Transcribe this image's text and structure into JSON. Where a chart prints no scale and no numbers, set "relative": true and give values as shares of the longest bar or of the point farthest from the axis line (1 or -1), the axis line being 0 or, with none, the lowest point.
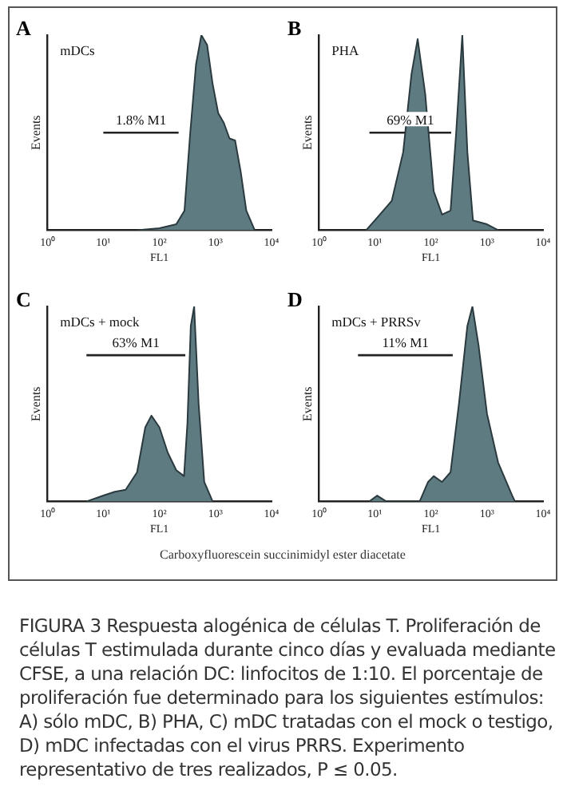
{
  "chart_data": [
    {
      "type": "area",
      "title": "A",
      "subtitle": "mDCs",
      "xlabel": "FL1",
      "ylabel": "Events",
      "relative": true,
      "log": "x",
      "marker": "none",
      "tick_labels": "x",
      "xlim": [
        1,
        10000
      ],
      "xticks": [
        {
          "value": 1,
          "label": "10⁰"
        },
        {
          "value": 10,
          "label": "10¹"
        },
        {
          "value": 100,
          "label": "10²"
        },
        {
          "value": 1000,
          "label": "10³"
        },
        {
          "value": 10000,
          "label": "10⁴"
        }
      ],
      "series": [
        {
          "color": "#5f7b82",
          "x": [
            40,
            100,
            200,
            280,
            355,
            450,
            560,
            710,
            890,
            1120,
            1410,
            1780,
            2240,
            2820,
            3550,
            5010
          ],
          "values": [
            0,
            0.01,
            0.03,
            0.1,
            0.5,
            0.85,
            1,
            0.95,
            0.75,
            0.6,
            0.55,
            0.47,
            0.46,
            0.3,
            0.1,
            0
          ]
        },
        {
          "type": "line",
          "color": "#222222",
          "x": [
            10,
            220
          ],
          "values": [
            0.5,
            0.5
          ]
        }
      ],
      "annotations": [
        {
          "text": "1.8% M1",
          "x": 47,
          "y": 0.5
        }
      ]
    },
    {
      "type": "area",
      "title": "B",
      "subtitle": "PHA",
      "xlabel": "FL1",
      "ylabel": "Events",
      "relative": true,
      "log": "x",
      "marker": "none",
      "tick_labels": "x",
      "xlim": [
        1,
        10000
      ],
      "xticks": [
        {
          "value": 1,
          "label": "10⁰"
        },
        {
          "value": 10,
          "label": "10¹"
        },
        {
          "value": 100,
          "label": "10²"
        },
        {
          "value": 1000,
          "label": "10³"
        },
        {
          "value": 10000,
          "label": "10⁴"
        }
      ],
      "series": [
        {
          "color": "#5f7b82",
          "x": [
            7,
            10,
            20,
            32,
            45,
            58,
            79,
            112,
            158,
            224,
            282,
            363,
            447,
            562,
            1000,
            1580
          ],
          "values": [
            0,
            0.05,
            0.15,
            0.4,
            0.8,
            0.98,
            0.7,
            0.2,
            0.08,
            0.1,
            0.5,
            1,
            0.4,
            0.05,
            0.03,
            0
          ]
        },
        {
          "type": "line",
          "color": "#222222",
          "x": [
            8,
            230
          ],
          "values": [
            0.5,
            0.5
          ]
        }
      ],
      "annotations": [
        {
          "text": "69% M1",
          "x": 43,
          "y": 0.5
        }
      ]
    },
    {
      "type": "area",
      "title": "C",
      "subtitle": "mDCs + mock",
      "xlabel": "FL1",
      "ylabel": "Events",
      "relative": true,
      "log": "x",
      "marker": "none",
      "tick_labels": "x",
      "xlim": [
        1,
        10000
      ],
      "xticks": [
        {
          "value": 1,
          "label": "10⁰"
        },
        {
          "value": 10,
          "label": "10¹"
        },
        {
          "value": 100,
          "label": "10²"
        },
        {
          "value": 1000,
          "label": "10³"
        },
        {
          "value": 10000,
          "label": "10⁴"
        }
      ],
      "series": [
        {
          "color": "#5f7b82",
          "x": [
            5,
            10,
            16,
            25,
            40,
            56,
            72,
            100,
            141,
            200,
            275,
            316,
            363,
            417,
            501,
            631,
            891
          ],
          "values": [
            0,
            0.03,
            0.05,
            0.06,
            0.15,
            0.38,
            0.44,
            0.38,
            0.25,
            0.16,
            0.13,
            0.4,
            0.9,
            1,
            0.5,
            0.1,
            0
          ]
        },
        {
          "type": "line",
          "color": "#222222",
          "x": [
            5,
            290
          ],
          "values": [
            0.75,
            0.75
          ]
        }
      ],
      "annotations": [
        {
          "text": "63% M1",
          "x": 38,
          "y": 0.75
        }
      ]
    },
    {
      "type": "area",
      "title": "D",
      "subtitle": "mDCs + PRRSv",
      "xlabel": "FL1",
      "ylabel": "Events",
      "relative": true,
      "log": "x",
      "marker": "none",
      "tick_labels": "x",
      "xlim": [
        1,
        10000
      ],
      "xticks": [
        {
          "value": 1,
          "label": "10⁰"
        },
        {
          "value": 10,
          "label": "10¹"
        },
        {
          "value": 100,
          "label": "10²"
        },
        {
          "value": 1000,
          "label": "10³"
        },
        {
          "value": 10000,
          "label": "10⁴"
        }
      ],
      "series": [
        {
          "color": "#5f7b82",
          "x": [
            8,
            11,
            16,
            63,
            89,
            112,
            158,
            224,
            316,
            447,
            550,
            708,
            1000,
            1580,
            2820,
            3160
          ],
          "values": [
            0,
            0.03,
            0,
            0,
            0.1,
            0.13,
            0.1,
            0.15,
            0.5,
            0.9,
            1,
            0.8,
            0.45,
            0.2,
            0.03,
            0
          ]
        },
        {
          "type": "line",
          "color": "#222222",
          "x": [
            5,
            245
          ],
          "values": [
            0.75,
            0.75
          ]
        }
      ],
      "annotations": [
        {
          "text": "11% M1",
          "x": 35,
          "y": 0.75
        },
        "Carboxyfluorescein succinimidyl ester diacetate",
        "FIGURA 3 Respuesta alogénica de células T. Proliferación de células T estimulada durante cinco días y evaluada mediante CFSE, a una relación DC: linfocitos de 1:10. El porcentaje de proliferación fue determinado para los siguientes estímulos: A) sólo mDC, B) PHA, C) mDC tratadas con el mock o testigo, D) mDC infectadas con el virus PRRS. Experimento representativo de tres realizados, P ≤ 0.05."
      ]
    }
  ]
}
